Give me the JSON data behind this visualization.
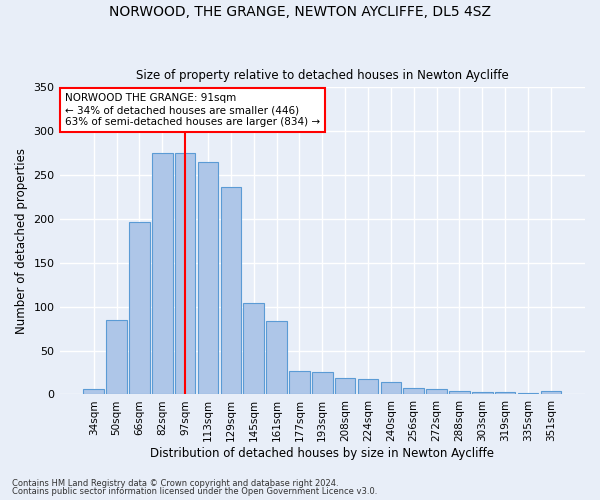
{
  "title1": "NORWOOD, THE GRANGE, NEWTON AYCLIFFE, DL5 4SZ",
  "title2": "Size of property relative to detached houses in Newton Aycliffe",
  "xlabel": "Distribution of detached houses by size in Newton Aycliffe",
  "ylabel": "Number of detached properties",
  "bar_labels": [
    "34sqm",
    "50sqm",
    "66sqm",
    "82sqm",
    "97sqm",
    "113sqm",
    "129sqm",
    "145sqm",
    "161sqm",
    "177sqm",
    "193sqm",
    "208sqm",
    "224sqm",
    "240sqm",
    "256sqm",
    "272sqm",
    "288sqm",
    "303sqm",
    "319sqm",
    "335sqm",
    "351sqm"
  ],
  "bar_values": [
    6,
    85,
    196,
    275,
    275,
    265,
    236,
    104,
    84,
    27,
    26,
    19,
    18,
    14,
    7,
    6,
    4,
    3,
    3,
    2,
    4
  ],
  "bar_color": "#aec6e8",
  "bar_edgecolor": "#5b9bd5",
  "bg_color": "#e8eef8",
  "grid_color": "#ffffff",
  "vline_x": 4,
  "vline_color": "red",
  "annotation_title": "NORWOOD THE GRANGE: 91sqm",
  "annotation_line1": "← 34% of detached houses are smaller (446)",
  "annotation_line2": "63% of semi-detached houses are larger (834) →",
  "footnote1": "Contains HM Land Registry data © Crown copyright and database right 2024.",
  "footnote2": "Contains public sector information licensed under the Open Government Licence v3.0.",
  "ylim": [
    0,
    350
  ],
  "yticks": [
    0,
    50,
    100,
    150,
    200,
    250,
    300,
    350
  ]
}
